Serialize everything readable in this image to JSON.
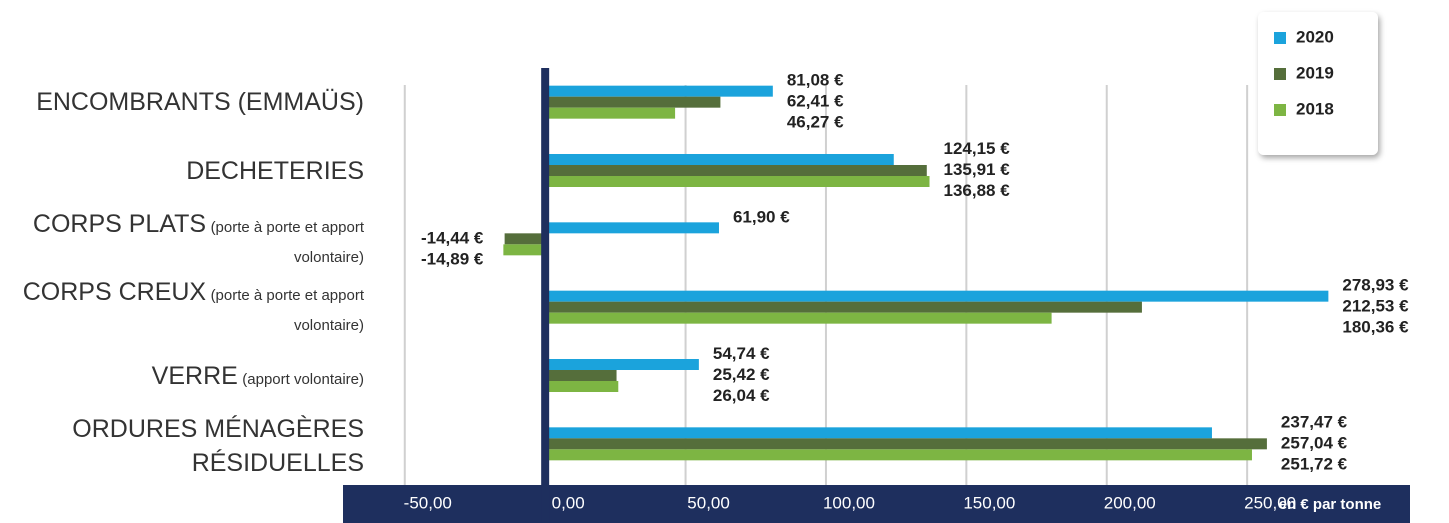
{
  "chart_data": {
    "type": "barh",
    "categories": [
      "ENCOMBRANTS (EMMAÜS)",
      "DECHETERIES",
      "CORPS PLATS",
      "CORPS CREUX",
      "VERRE",
      "ORDURES MÉNAGÈRES RÉSIDUELLES"
    ],
    "category_notes": [
      null,
      null,
      "(porte à porte et apport volontaire)",
      "(porte à porte et apport volontaire)",
      "(apport volontaire)",
      null
    ],
    "series": [
      {
        "name": "2020",
        "color": "#1ba3dc",
        "values": [
          81.08,
          124.15,
          61.9,
          278.93,
          54.74,
          237.47
        ],
        "value_labels": [
          "81,08 €",
          "124,15 €",
          "61,90 €",
          "278,93 €",
          "54,74 €",
          "237,47 €"
        ]
      },
      {
        "name": "2019",
        "color": "#556e3b",
        "values": [
          62.41,
          135.91,
          -14.44,
          212.53,
          25.42,
          257.04
        ],
        "value_labels": [
          "62,41 €",
          "135,91 €",
          "-14,44 €",
          "212,53 €",
          "25,42 €",
          "257,04 €"
        ]
      },
      {
        "name": "2018",
        "color": "#7db543",
        "values": [
          46.27,
          136.88,
          -14.89,
          180.36,
          26.04,
          251.72
        ],
        "value_labels": [
          "46,27 €",
          "136,88 €",
          "-14,89 €",
          "180,36 €",
          "26,04 €",
          "251,72 €"
        ]
      }
    ],
    "xlabel": "en € par tonne",
    "xlim": [
      -72,
      308
    ],
    "xticks": [
      {
        "value": -50,
        "label": "-50,00"
      },
      {
        "value": 0,
        "label": "0,00"
      },
      {
        "value": 50,
        "label": "50,00"
      },
      {
        "value": 100,
        "label": "100,00"
      },
      {
        "value": 150,
        "label": "150,00"
      },
      {
        "value": 200,
        "label": "200,00"
      },
      {
        "value": 250,
        "label": "250,00"
      }
    ],
    "grid": true,
    "legend": "upper right"
  }
}
